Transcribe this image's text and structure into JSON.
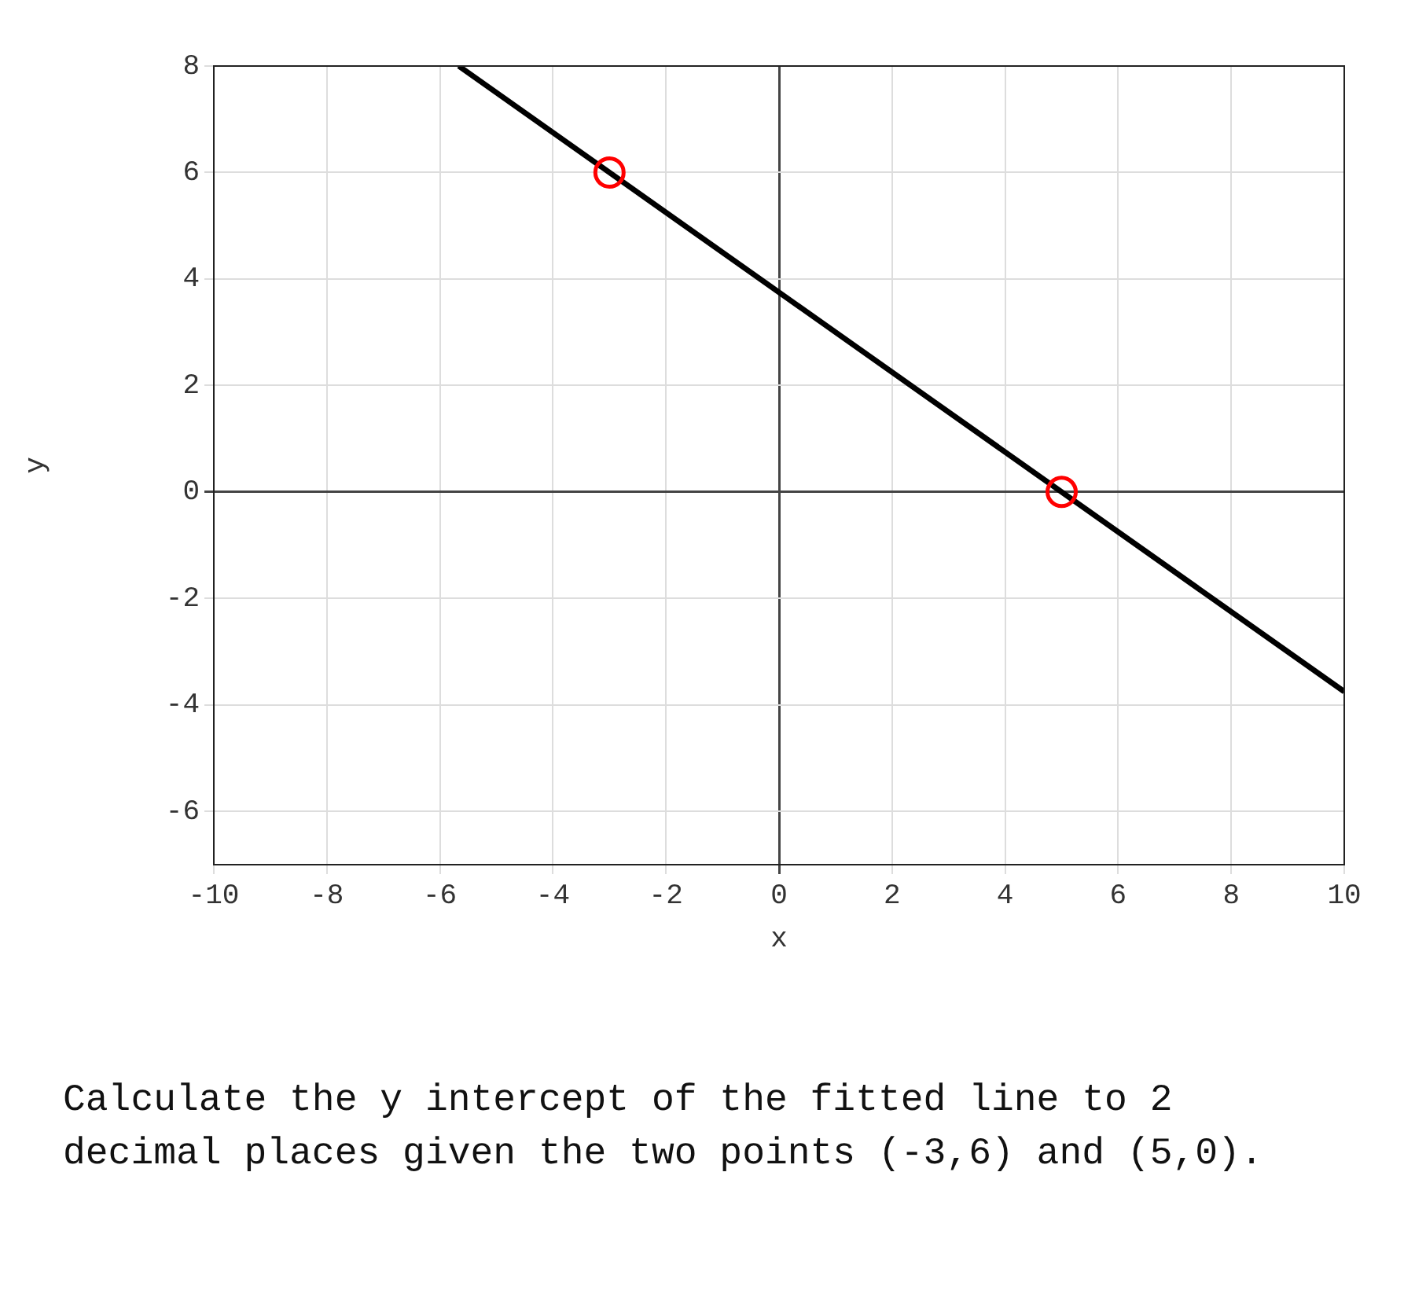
{
  "chart_data": {
    "type": "line",
    "xlabel": "x",
    "ylabel": "y",
    "xlim": [
      -10,
      10
    ],
    "xticks": [
      -10,
      -8,
      -6,
      -4,
      -2,
      0,
      2,
      4,
      6,
      8,
      10
    ],
    "ylim": [
      -7,
      8
    ],
    "yticks": [
      -6,
      -4,
      -2,
      0,
      2,
      4,
      6,
      8
    ],
    "grid": true,
    "legend": false,
    "series": [
      {
        "type": "line",
        "x": [
          -5.667,
          10
        ],
        "values": [
          8,
          -3.75
        ],
        "color": "#000000",
        "marker": "none"
      },
      {
        "type": "scatter",
        "x": [
          -3,
          5
        ],
        "values": [
          6,
          0
        ],
        "color": "#ff0000",
        "marker": "circle"
      }
    ],
    "annotations": [
      "Calculate the y intercept of the fitted line to 2 decimal places given the two points (-3,6) and (5,0)."
    ]
  }
}
